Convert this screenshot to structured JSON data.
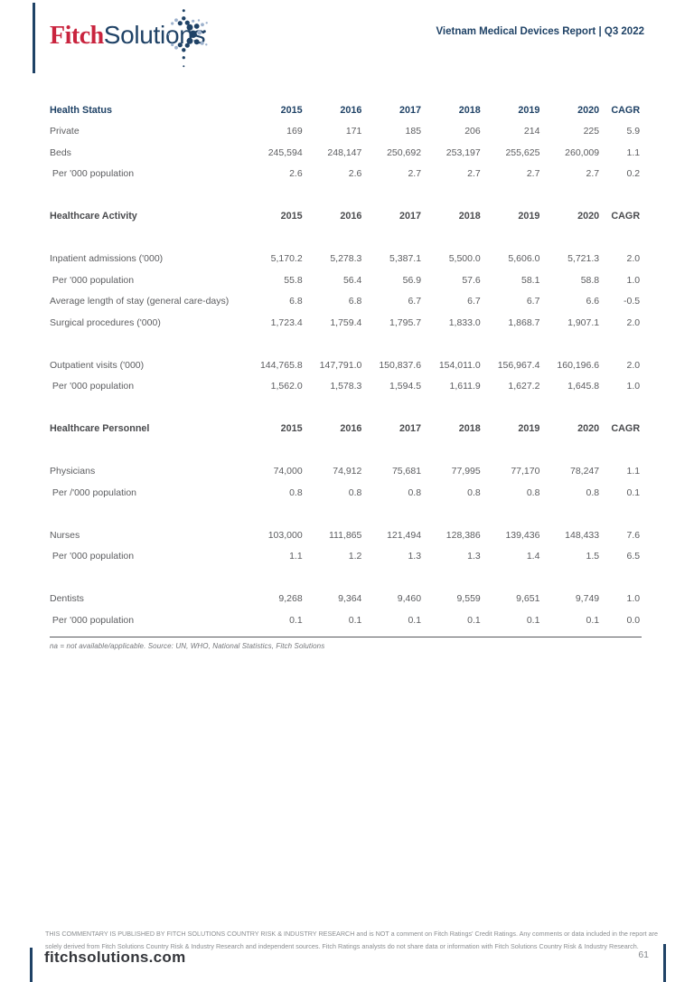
{
  "brand": {
    "fitch": "Fitch",
    "solutions": "Solutions",
    "logo_mark_icon": "starburst-dots"
  },
  "header": {
    "report_title": "Vietnam Medical Devices Report | Q3 2022"
  },
  "colors": {
    "navy": "#1f4266",
    "red": "#c9243e",
    "light_blue": "#9db1cc",
    "body_text": "#5c5d60",
    "dark_header": "#4a4b4e"
  },
  "tables": [
    {
      "title": "Health Status",
      "header_style": "navy",
      "gap_after_header": false,
      "years": [
        "2015",
        "2016",
        "2017",
        "2018",
        "2019",
        "2020"
      ],
      "cagr_label": "CAGR",
      "groups": [
        [
          {
            "label": "Private",
            "values": [
              "169",
              "171",
              "185",
              "206",
              "214",
              "225",
              "5.9"
            ]
          },
          {
            "label": "Beds",
            "values": [
              "245,594",
              "248,147",
              "250,692",
              "253,197",
              "255,625",
              "260,009",
              "1.1"
            ]
          },
          {
            "label": " Per '000 population",
            "values": [
              "2.6",
              "2.6",
              "2.7",
              "2.7",
              "2.7",
              "2.7",
              "0.2"
            ]
          }
        ]
      ]
    },
    {
      "title": "Healthcare Activity",
      "header_style": "dark",
      "gap_after_header": true,
      "years": [
        "2015",
        "2016",
        "2017",
        "2018",
        "2019",
        "2020"
      ],
      "cagr_label": "CAGR",
      "groups": [
        [
          {
            "label": "Inpatient admissions ('000)",
            "values": [
              "5,170.2",
              "5,278.3",
              "5,387.1",
              "5,500.0",
              "5,606.0",
              "5,721.3",
              "2.0"
            ]
          },
          {
            "label": " Per '000 population",
            "values": [
              "55.8",
              "56.4",
              "56.9",
              "57.6",
              "58.1",
              "58.8",
              "1.0"
            ]
          },
          {
            "label": "Average length of stay (general care-days)",
            "values": [
              "6.8",
              "6.8",
              "6.7",
              "6.7",
              "6.7",
              "6.6",
              "-0.5"
            ]
          },
          {
            "label": "Surgical procedures ('000)",
            "values": [
              "1,723.4",
              "1,759.4",
              "1,795.7",
              "1,833.0",
              "1,868.7",
              "1,907.1",
              "2.0"
            ]
          }
        ],
        [
          {
            "label": "Outpatient visits ('000)",
            "values": [
              "144,765.8",
              "147,791.0",
              "150,837.6",
              "154,011.0",
              "156,967.4",
              "160,196.6",
              "2.0"
            ]
          },
          {
            "label": " Per '000 population",
            "values": [
              "1,562.0",
              "1,578.3",
              "1,594.5",
              "1,611.9",
              "1,627.2",
              "1,645.8",
              "1.0"
            ]
          }
        ]
      ]
    },
    {
      "title": "Healthcare Personnel",
      "header_style": "dark",
      "gap_after_header": true,
      "years": [
        "2015",
        "2016",
        "2017",
        "2018",
        "2019",
        "2020"
      ],
      "cagr_label": "CAGR",
      "groups": [
        [
          {
            "label": "Physicians",
            "values": [
              "74,000",
              "74,912",
              "75,681",
              "77,995",
              "77,170",
              "78,247",
              "1.1"
            ]
          },
          {
            "label": " Per /'000 population",
            "values": [
              "0.8",
              "0.8",
              "0.8",
              "0.8",
              "0.8",
              "0.8",
              "0.1"
            ]
          }
        ],
        [
          {
            "label": "Nurses",
            "values": [
              "103,000",
              "111,865",
              "121,494",
              "128,386",
              "139,436",
              "148,433",
              "7.6"
            ]
          },
          {
            "label": " Per '000 population",
            "values": [
              "1.1",
              "1.2",
              "1.3",
              "1.3",
              "1.4",
              "1.5",
              "6.5"
            ]
          }
        ],
        [
          {
            "label": "Dentists",
            "values": [
              "9,268",
              "9,364",
              "9,460",
              "9,559",
              "9,651",
              "9,749",
              "1.0"
            ]
          },
          {
            "label": " Per '000 population",
            "values": [
              "0.1",
              "0.1",
              "0.1",
              "0.1",
              "0.1",
              "0.1",
              "0.0"
            ]
          }
        ]
      ]
    }
  ],
  "footnote": "na = not available/applicable. Source: UN, WHO, National Statistics, Fitch Solutions",
  "footer": {
    "disclaimer": "THIS COMMENTARY IS PUBLISHED BY FITCH SOLUTIONS COUNTRY RISK & INDUSTRY RESEARCH and is NOT a comment on Fitch Ratings' Credit Ratings. Any comments or data included in the report are solely derived from Fitch Solutions Country Risk & Industry Research and independent sources. Fitch Ratings analysts do not share data or information with Fitch Solutions Country Risk & Industry Research.",
    "website": "fitchsolutions.com",
    "page_number": "61"
  }
}
